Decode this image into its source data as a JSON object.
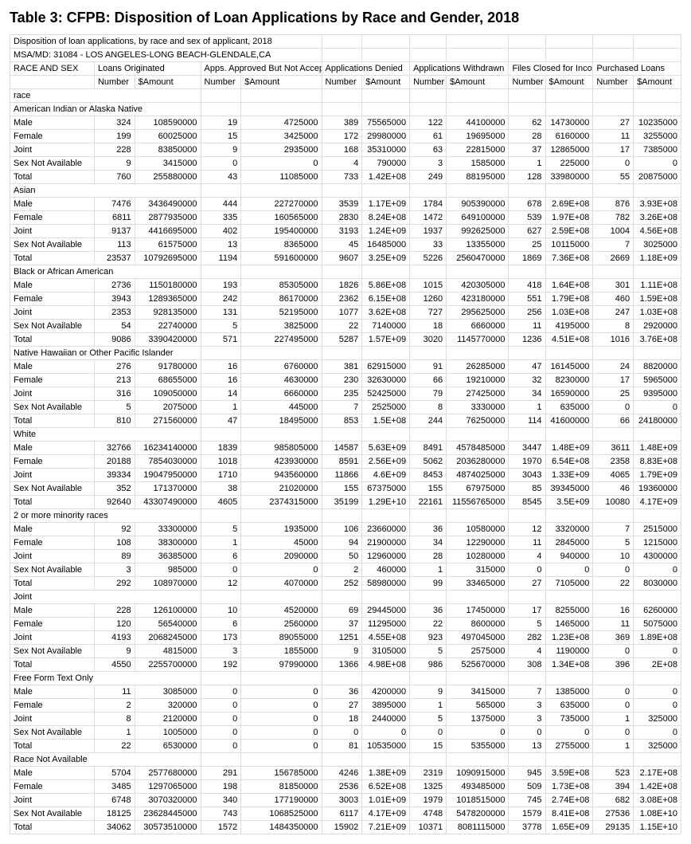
{
  "title": "Table 3: CFPB: Disposition of Loan Applications by Race and Gender, 2018",
  "subtitle1": "Disposition of loan applications, by race and sex of applicant, 2018",
  "subtitle2": "MSA/MD: 31084 - LOS ANGELES-LONG BEACH-GLENDALE,CA",
  "header_group_labels": {
    "race_and_sex": "RACE AND SEX",
    "orig": "Loans Originated",
    "approved": "Apps. Approved But Not Accepted",
    "denied": "Applications Denied",
    "withdrawn": "Applications Withdrawn",
    "closed": "Files Closed for Inco",
    "purchased": "Purchased Loans"
  },
  "col_labels": {
    "number": "Number",
    "amount": "$Amount"
  },
  "sections": [
    {
      "label": "race",
      "rows": []
    },
    {
      "label": "American Indian or Alaska Native",
      "rows": [
        {
          "l": "Male",
          "v": [
            324,
            108590000,
            19,
            4725000,
            389,
            75565000,
            122,
            44100000,
            62,
            14730000,
            27,
            10235000
          ]
        },
        {
          "l": "Female",
          "v": [
            199,
            60025000,
            15,
            3425000,
            172,
            29980000,
            61,
            19695000,
            28,
            6160000,
            11,
            3255000
          ]
        },
        {
          "l": "Joint",
          "v": [
            228,
            83850000,
            9,
            2935000,
            168,
            35310000,
            63,
            22815000,
            37,
            12865000,
            17,
            7385000
          ]
        },
        {
          "l": "Sex Not Available",
          "v": [
            9,
            3415000,
            0,
            0,
            4,
            790000,
            3,
            1585000,
            1,
            225000,
            0,
            0
          ]
        },
        {
          "l": "Total",
          "v": [
            760,
            255880000,
            43,
            11085000,
            733,
            "1.42E+08",
            249,
            88195000,
            128,
            33980000,
            55,
            20875000
          ]
        }
      ]
    },
    {
      "label": "Asian",
      "rows": [
        {
          "l": "Male",
          "v": [
            7476,
            3436490000,
            444,
            227270000,
            3539,
            "1.17E+09",
            1784,
            905390000,
            678,
            "2.69E+08",
            876,
            "3.93E+08"
          ]
        },
        {
          "l": "Female",
          "v": [
            6811,
            2877935000,
            335,
            160565000,
            2830,
            "8.24E+08",
            1472,
            649100000,
            539,
            "1.97E+08",
            782,
            "3.26E+08"
          ]
        },
        {
          "l": "Joint",
          "v": [
            9137,
            4416695000,
            402,
            195400000,
            3193,
            "1.24E+09",
            1937,
            992625000,
            627,
            "2.59E+08",
            1004,
            "4.56E+08"
          ]
        },
        {
          "l": "Sex Not Available",
          "v": [
            113,
            61575000,
            13,
            8365000,
            45,
            16485000,
            33,
            13355000,
            25,
            10115000,
            7,
            3025000
          ]
        },
        {
          "l": "Total",
          "v": [
            23537,
            10792695000,
            1194,
            591600000,
            9607,
            "3.25E+09",
            5226,
            2560470000,
            1869,
            "7.36E+08",
            2669,
            "1.18E+09"
          ]
        }
      ]
    },
    {
      "label": "Black or African American",
      "rows": [
        {
          "l": "Male",
          "v": [
            2736,
            1150180000,
            193,
            85305000,
            1826,
            "5.86E+08",
            1015,
            420305000,
            418,
            "1.64E+08",
            301,
            "1.11E+08"
          ]
        },
        {
          "l": "Female",
          "v": [
            3943,
            1289365000,
            242,
            86170000,
            2362,
            "6.15E+08",
            1260,
            423180000,
            551,
            "1.79E+08",
            460,
            "1.59E+08"
          ]
        },
        {
          "l": "Joint",
          "v": [
            2353,
            928135000,
            131,
            52195000,
            1077,
            "3.62E+08",
            727,
            295625000,
            256,
            "1.03E+08",
            247,
            "1.03E+08"
          ]
        },
        {
          "l": "Sex Not Available",
          "v": [
            54,
            22740000,
            5,
            3825000,
            22,
            7140000,
            18,
            6660000,
            11,
            4195000,
            8,
            2920000
          ]
        },
        {
          "l": "Total",
          "v": [
            9086,
            3390420000,
            571,
            227495000,
            5287,
            "1.57E+09",
            3020,
            1145770000,
            1236,
            "4.51E+08",
            1016,
            "3.76E+08"
          ]
        }
      ]
    },
    {
      "label": "Native Hawaiian or Other Pacific Islander",
      "rows": [
        {
          "l": "Male",
          "v": [
            276,
            91780000,
            16,
            6760000,
            381,
            62915000,
            91,
            26285000,
            47,
            16145000,
            24,
            8820000
          ]
        },
        {
          "l": "Female",
          "v": [
            213,
            68655000,
            16,
            4630000,
            230,
            32630000,
            66,
            19210000,
            32,
            8230000,
            17,
            5965000
          ]
        },
        {
          "l": "Joint",
          "v": [
            316,
            109050000,
            14,
            6660000,
            235,
            52425000,
            79,
            27425000,
            34,
            16590000,
            25,
            9395000
          ]
        },
        {
          "l": "Sex Not Available",
          "v": [
            5,
            2075000,
            1,
            445000,
            7,
            2525000,
            8,
            3330000,
            1,
            635000,
            0,
            0
          ]
        },
        {
          "l": "Total",
          "v": [
            810,
            271560000,
            47,
            18495000,
            853,
            "1.5E+08",
            244,
            76250000,
            114,
            41600000,
            66,
            24180000
          ]
        }
      ]
    },
    {
      "label": "White",
      "rows": [
        {
          "l": "Male",
          "v": [
            32766,
            16234140000,
            1839,
            985805000,
            14587,
            "5.63E+09",
            8491,
            4578485000,
            3447,
            "1.48E+09",
            3611,
            "1.48E+09"
          ]
        },
        {
          "l": "Female",
          "v": [
            20188,
            7854030000,
            1018,
            423930000,
            8591,
            "2.56E+09",
            5062,
            2036280000,
            1970,
            "6.54E+08",
            2358,
            "8.83E+08"
          ]
        },
        {
          "l": "Joint",
          "v": [
            39334,
            19047950000,
            1710,
            943560000,
            11866,
            "4.6E+09",
            8453,
            4874025000,
            3043,
            "1.33E+09",
            4065,
            "1.79E+09"
          ]
        },
        {
          "l": "Sex Not Available",
          "v": [
            352,
            171370000,
            38,
            21020000,
            155,
            67375000,
            155,
            67975000,
            85,
            39345000,
            46,
            19360000
          ]
        },
        {
          "l": "Total",
          "v": [
            92640,
            43307490000,
            4605,
            2374315000,
            35199,
            "1.29E+10",
            22161,
            11556765000,
            8545,
            "3.5E+09",
            10080,
            "4.17E+09"
          ]
        }
      ]
    },
    {
      "label": "2 or more minority races",
      "rows": [
        {
          "l": "Male",
          "v": [
            92,
            33300000,
            5,
            1935000,
            106,
            23660000,
            36,
            10580000,
            12,
            3320000,
            7,
            2515000
          ]
        },
        {
          "l": "Female",
          "v": [
            108,
            38300000,
            1,
            45000,
            94,
            21900000,
            34,
            12290000,
            11,
            2845000,
            5,
            1215000
          ]
        },
        {
          "l": "Joint",
          "v": [
            89,
            36385000,
            6,
            2090000,
            50,
            12960000,
            28,
            10280000,
            4,
            940000,
            10,
            4300000
          ]
        },
        {
          "l": "Sex Not Available",
          "v": [
            3,
            985000,
            0,
            0,
            2,
            460000,
            1,
            315000,
            0,
            0,
            0,
            0
          ]
        },
        {
          "l": "Total",
          "v": [
            292,
            108970000,
            12,
            4070000,
            252,
            58980000,
            99,
            33465000,
            27,
            7105000,
            22,
            8030000
          ]
        }
      ]
    },
    {
      "label": "Joint",
      "rows": [
        {
          "l": "Male",
          "v": [
            228,
            126100000,
            10,
            4520000,
            69,
            29445000,
            36,
            17450000,
            17,
            8255000,
            16,
            6260000
          ]
        },
        {
          "l": "Female",
          "v": [
            120,
            56540000,
            6,
            2560000,
            37,
            11295000,
            22,
            8600000,
            5,
            1465000,
            11,
            5075000
          ]
        },
        {
          "l": "Joint",
          "v": [
            4193,
            2068245000,
            173,
            89055000,
            1251,
            "4.55E+08",
            923,
            497045000,
            282,
            "1.23E+08",
            369,
            "1.89E+08"
          ]
        },
        {
          "l": "Sex Not Available",
          "v": [
            9,
            4815000,
            3,
            1855000,
            9,
            3105000,
            5,
            2575000,
            4,
            1190000,
            0,
            0
          ]
        },
        {
          "l": "Total",
          "v": [
            4550,
            2255700000,
            192,
            97990000,
            1366,
            "4.98E+08",
            986,
            525670000,
            308,
            "1.34E+08",
            396,
            "2E+08"
          ]
        }
      ]
    },
    {
      "label": "Free Form Text Only",
      "rows": [
        {
          "l": "Male",
          "v": [
            11,
            3085000,
            0,
            0,
            36,
            4200000,
            9,
            3415000,
            7,
            1385000,
            0,
            0
          ]
        },
        {
          "l": "Female",
          "v": [
            2,
            320000,
            0,
            0,
            27,
            3895000,
            1,
            565000,
            3,
            635000,
            0,
            0
          ]
        },
        {
          "l": "Joint",
          "v": [
            8,
            2120000,
            0,
            0,
            18,
            2440000,
            5,
            1375000,
            3,
            735000,
            1,
            325000
          ]
        },
        {
          "l": "Sex Not Available",
          "v": [
            1,
            1005000,
            0,
            0,
            0,
            0,
            0,
            0,
            0,
            0,
            0,
            0
          ]
        },
        {
          "l": "Total",
          "v": [
            22,
            6530000,
            0,
            0,
            81,
            10535000,
            15,
            5355000,
            13,
            2755000,
            1,
            325000
          ]
        }
      ]
    },
    {
      "label": "Race Not Available",
      "rows": [
        {
          "l": "Male",
          "v": [
            5704,
            2577680000,
            291,
            156785000,
            4246,
            "1.38E+09",
            2319,
            1090915000,
            945,
            "3.59E+08",
            523,
            "2.17E+08"
          ]
        },
        {
          "l": "Female",
          "v": [
            3485,
            1297065000,
            198,
            81850000,
            2536,
            "6.52E+08",
            1325,
            493485000,
            509,
            "1.73E+08",
            394,
            "1.42E+08"
          ]
        },
        {
          "l": "Joint",
          "v": [
            6748,
            3070320000,
            340,
            177190000,
            3003,
            "1.01E+09",
            1979,
            1018515000,
            745,
            "2.74E+08",
            682,
            "3.08E+08"
          ]
        },
        {
          "l": "Sex Not Available",
          "v": [
            18125,
            23628445000,
            743,
            1068525000,
            6117,
            "4.17E+09",
            4748,
            5478200000,
            1579,
            "8.41E+08",
            27536,
            "1.08E+10"
          ]
        },
        {
          "l": "Total",
          "v": [
            34062,
            30573510000,
            1572,
            1484350000,
            15902,
            "7.21E+09",
            10371,
            8081115000,
            3778,
            "1.65E+09",
            29135,
            "1.15E+10"
          ]
        }
      ]
    }
  ]
}
